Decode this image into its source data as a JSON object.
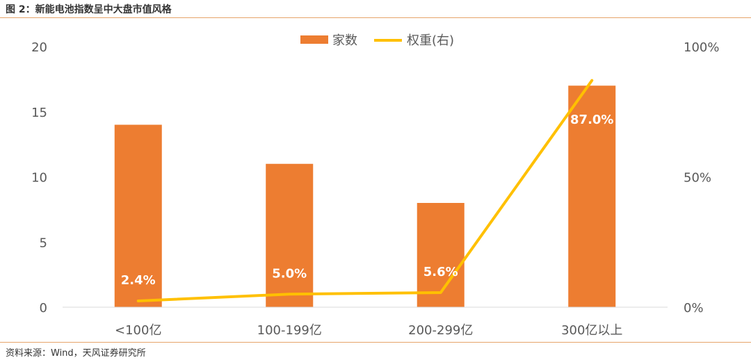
{
  "header": {
    "title": "图 2：新能电池指数呈中大盘市值风格"
  },
  "footer": {
    "source": "资料来源：Wind，天风证券研究所"
  },
  "colors": {
    "bar": "#ed7d31",
    "line": "#ffc000",
    "rule": "#e6a46a"
  },
  "chart_data": {
    "type": "bar",
    "categories": [
      "<100亿",
      "100-199亿",
      "200-299亿",
      "300亿以上"
    ],
    "series": [
      {
        "name": "家数",
        "type": "bar",
        "axis": "left",
        "values": [
          14,
          11,
          8,
          17
        ]
      },
      {
        "name": "权重(右)",
        "type": "line",
        "axis": "right",
        "values": [
          2.4,
          5.0,
          5.6,
          87.0
        ],
        "labels": [
          "2.4%",
          "5.0%",
          "5.6%",
          "87.0%"
        ]
      }
    ],
    "ylim": [
      0,
      20
    ],
    "yticks": [
      "0",
      "5",
      "10",
      "15",
      "20"
    ],
    "y2lim": [
      0,
      100
    ],
    "y2ticks": [
      "0%",
      "50%",
      "100%"
    ],
    "legend": "top-center",
    "grid": false
  }
}
